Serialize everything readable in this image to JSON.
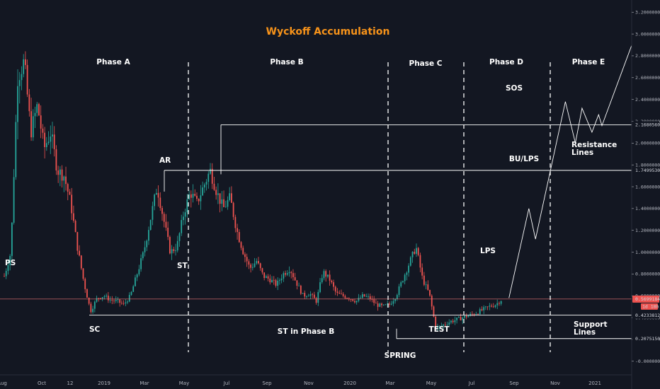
{
  "colors": {
    "background": "#131722",
    "up": "#26a69a",
    "down": "#ef5350",
    "title": "#f7931a",
    "text": "#ffffff",
    "axis_text": "#b2b5be",
    "line": "#ffffff",
    "price_line": "#e57373"
  },
  "chart_data": {
    "type": "candlestick",
    "title": "Wyckoff Accumulation",
    "x_ticks": [
      "Aug",
      "Oct",
      "12",
      "2019",
      "Mar",
      "May",
      "Jul",
      "Sep",
      "Nov",
      "2020",
      "Mar",
      "May",
      "Jul",
      "Sep",
      "Nov",
      "2021"
    ],
    "y_ticks": [
      "3.2000000",
      "3.0000000",
      "2.8000000",
      "2.6000000",
      "2.4000000",
      "2.2000000",
      "2.0000000",
      "1.8000000",
      "1.6000000",
      "1.4000000",
      "1.2000000",
      "1.0000000",
      "0.8000000",
      "0.6000000",
      "0.4000000",
      "0.2000000",
      "-0.0000000"
    ],
    "ylim": [
      -0.06,
      3.26
    ],
    "phases": [
      "Phase A",
      "Phase B",
      "Phase C",
      "Phase D",
      "Phase E"
    ],
    "events": [
      "PS",
      "SC",
      "AR",
      "ST",
      "ST in Phase B",
      "SPRING",
      "TEST",
      "LPS",
      "BU/LPS",
      "SOS"
    ],
    "annotations": [
      "Resistance Lines",
      "Support Lines"
    ],
    "levels": [
      {
        "label": "2.1680560",
        "value": 2.168056
      },
      {
        "label": "1.7499530",
        "value": 1.749953
      },
      {
        "label": "0.4233812",
        "value": 0.4233812
      },
      {
        "label": "0.2075150",
        "value": 0.207515
      }
    ],
    "current_price": {
      "label": "0.5699184",
      "value": 0.5699184
    },
    "interval_tag": "1d 18h",
    "price_path": [
      {
        "t": 0.0,
        "p": 0.78
      },
      {
        "t": 0.02,
        "p": 1.0
      },
      {
        "t": 0.04,
        "p": 2.6
      },
      {
        "t": 0.06,
        "p": 2.75
      },
      {
        "t": 0.08,
        "p": 2.1
      },
      {
        "t": 0.1,
        "p": 2.35
      },
      {
        "t": 0.12,
        "p": 1.95
      },
      {
        "t": 0.14,
        "p": 2.1
      },
      {
        "t": 0.16,
        "p": 1.75
      },
      {
        "t": 0.18,
        "p": 1.7
      },
      {
        "t": 0.2,
        "p": 1.45
      },
      {
        "t": 0.22,
        "p": 1.05
      },
      {
        "t": 0.24,
        "p": 0.72
      },
      {
        "t": 0.26,
        "p": 0.46
      },
      {
        "t": 0.28,
        "p": 0.58
      },
      {
        "t": 0.3,
        "p": 0.6
      },
      {
        "t": 0.32,
        "p": 0.56
      },
      {
        "t": 0.34,
        "p": 0.55
      },
      {
        "t": 0.36,
        "p": 0.52
      },
      {
        "t": 0.38,
        "p": 0.6
      },
      {
        "t": 0.4,
        "p": 0.8
      },
      {
        "t": 0.42,
        "p": 1.0
      },
      {
        "t": 0.44,
        "p": 1.3
      },
      {
        "t": 0.46,
        "p": 1.6
      },
      {
        "t": 0.48,
        "p": 1.3
      },
      {
        "t": 0.5,
        "p": 1.0
      },
      {
        "t": 0.52,
        "p": 1.05
      },
      {
        "t": 0.54,
        "p": 1.35
      },
      {
        "t": 0.56,
        "p": 1.55
      },
      {
        "t": 0.58,
        "p": 1.45
      },
      {
        "t": 0.6,
        "p": 1.6
      },
      {
        "t": 0.62,
        "p": 1.75
      },
      {
        "t": 0.64,
        "p": 1.55
      },
      {
        "t": 0.66,
        "p": 1.4
      },
      {
        "t": 0.68,
        "p": 1.5
      },
      {
        "t": 0.7,
        "p": 1.2
      },
      {
        "t": 0.72,
        "p": 1.0
      },
      {
        "t": 0.74,
        "p": 0.85
      },
      {
        "t": 0.76,
        "p": 0.92
      },
      {
        "t": 0.78,
        "p": 0.78
      },
      {
        "t": 0.8,
        "p": 0.75
      },
      {
        "t": 0.82,
        "p": 0.7
      },
      {
        "t": 0.84,
        "p": 0.8
      },
      {
        "t": 0.86,
        "p": 0.85
      },
      {
        "t": 0.88,
        "p": 0.72
      },
      {
        "t": 0.9,
        "p": 0.6
      },
      {
        "t": 0.92,
        "p": 0.62
      },
      {
        "t": 0.94,
        "p": 0.55
      },
      {
        "t": 0.96,
        "p": 0.82
      },
      {
        "t": 0.98,
        "p": 0.75
      },
      {
        "t": 1.0,
        "p": 0.62
      },
      {
        "t": 1.02,
        "p": 0.6
      },
      {
        "t": 1.04,
        "p": 0.58
      },
      {
        "t": 1.06,
        "p": 0.55
      },
      {
        "t": 1.08,
        "p": 0.6
      },
      {
        "t": 1.1,
        "p": 0.58
      },
      {
        "t": 1.12,
        "p": 0.52
      },
      {
        "t": 1.14,
        "p": 0.5
      },
      {
        "t": 1.16,
        "p": 0.52
      },
      {
        "t": 1.18,
        "p": 0.6
      },
      {
        "t": 1.2,
        "p": 0.75
      },
      {
        "t": 1.22,
        "p": 0.9
      },
      {
        "t": 1.24,
        "p": 1.05
      },
      {
        "t": 1.26,
        "p": 0.75
      },
      {
        "t": 1.28,
        "p": 0.62
      },
      {
        "t": 1.3,
        "p": 0.3
      },
      {
        "t": 1.32,
        "p": 0.33
      },
      {
        "t": 1.34,
        "p": 0.36
      },
      {
        "t": 1.36,
        "p": 0.38
      },
      {
        "t": 1.38,
        "p": 0.4
      },
      {
        "t": 1.4,
        "p": 0.42
      },
      {
        "t": 1.42,
        "p": 0.44
      },
      {
        "t": 1.44,
        "p": 0.47
      },
      {
        "t": 1.46,
        "p": 0.5
      },
      {
        "t": 1.48,
        "p": 0.52
      },
      {
        "t": 1.5,
        "p": 0.57
      }
    ],
    "projection": [
      {
        "t": 1.52,
        "p": 0.58
      },
      {
        "t": 1.58,
        "p": 1.4
      },
      {
        "t": 1.6,
        "p": 1.12
      },
      {
        "t": 1.69,
        "p": 2.38
      },
      {
        "t": 1.72,
        "p": 2.0
      },
      {
        "t": 1.74,
        "p": 2.32
      },
      {
        "t": 1.77,
        "p": 2.1
      },
      {
        "t": 1.79,
        "p": 2.26
      },
      {
        "t": 1.8,
        "p": 2.16
      },
      {
        "t": 1.89,
        "p": 2.9
      }
    ]
  }
}
